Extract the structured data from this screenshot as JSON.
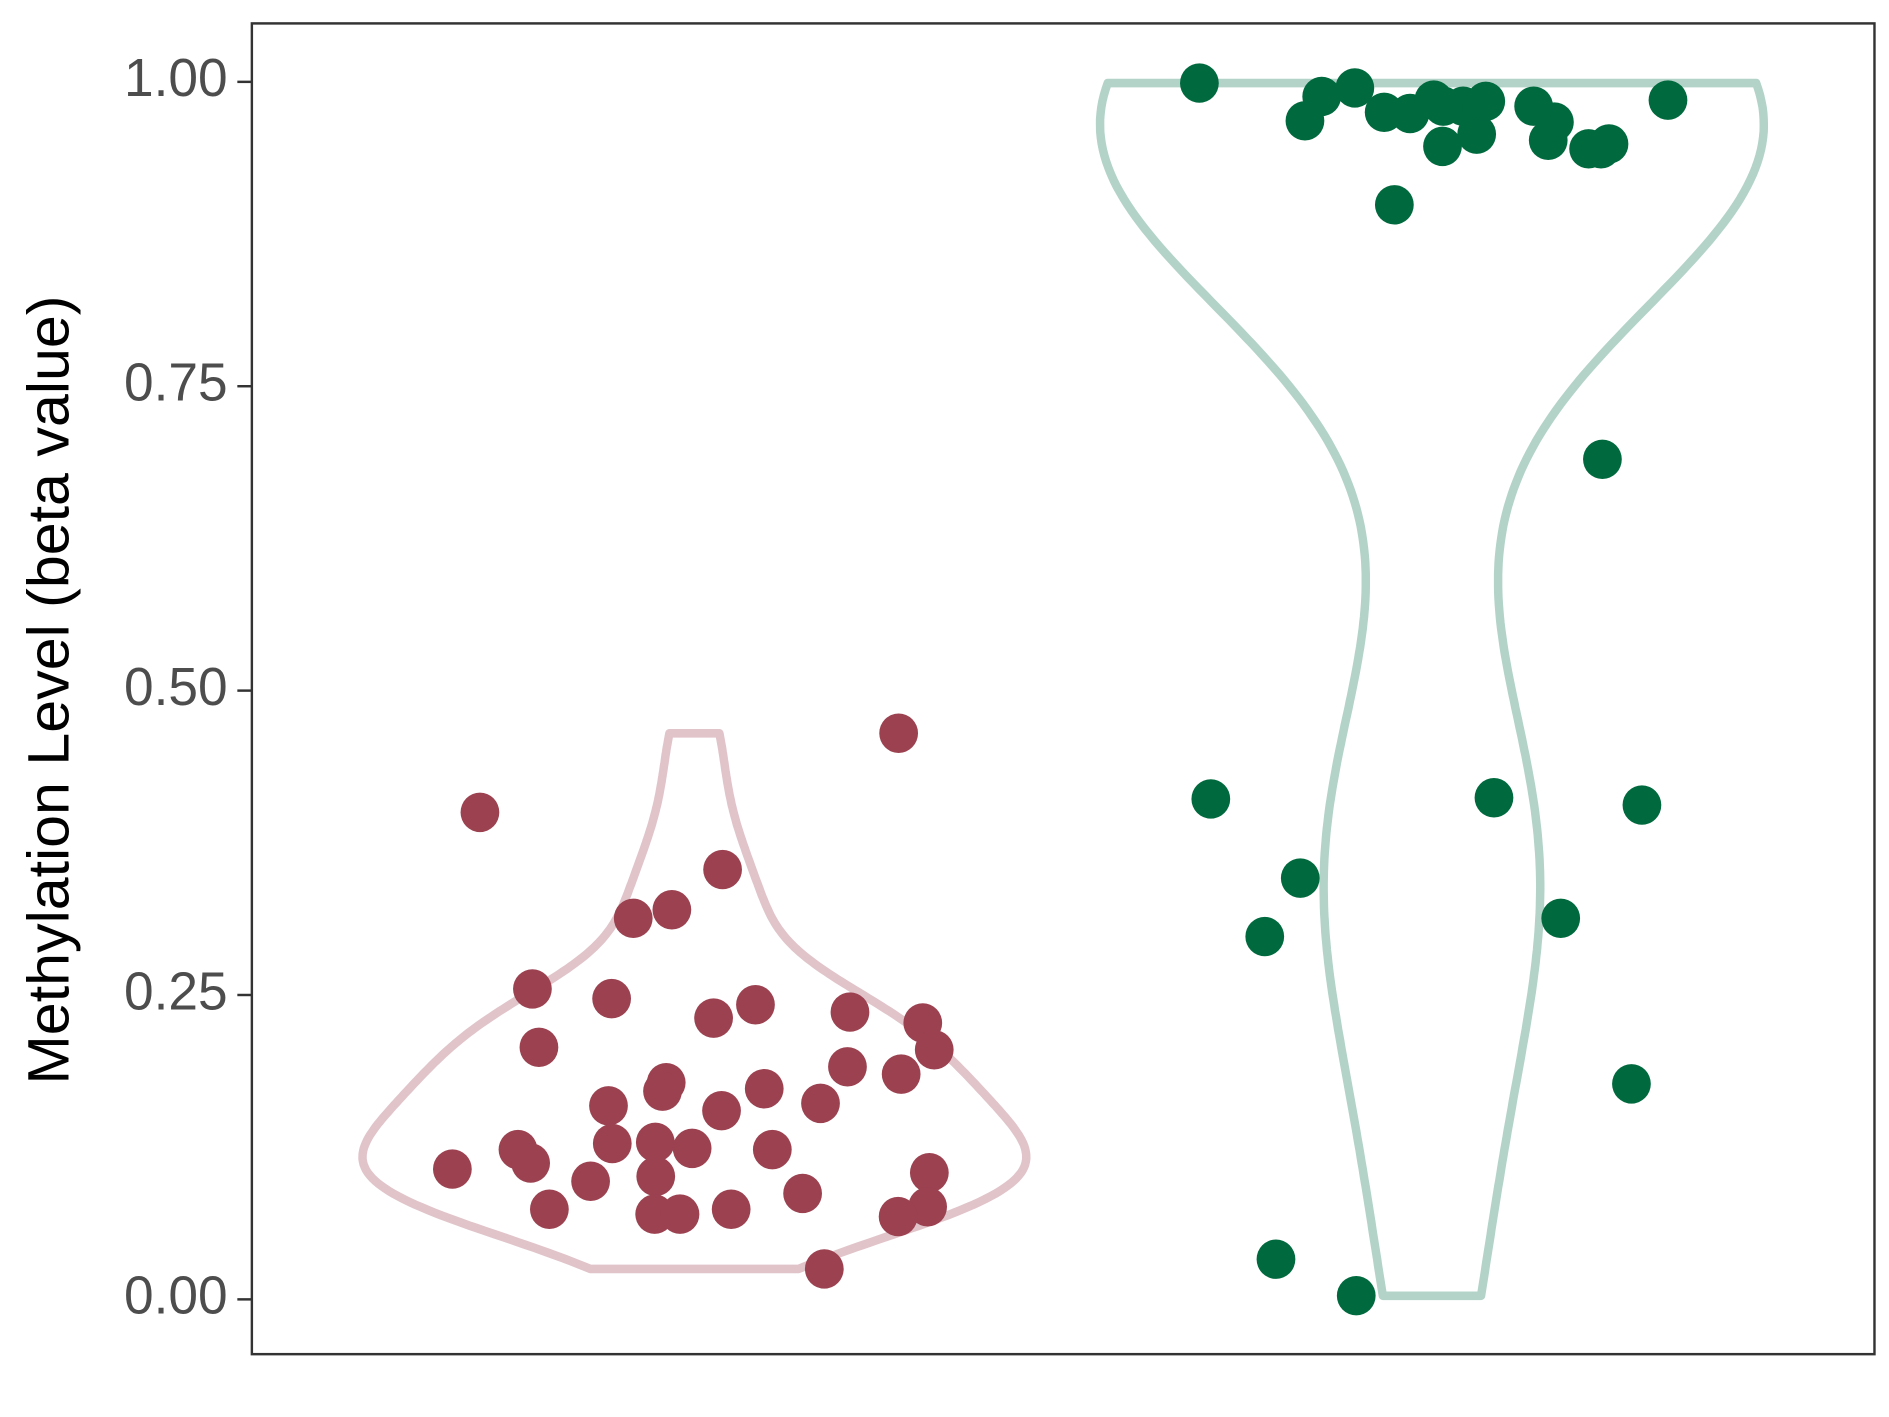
{
  "chart_data": {
    "type": "violin",
    "y_label": "Methylation Level (beta value)",
    "ylim": [
      -0.045,
      1.048
    ],
    "yticks": [
      {
        "value": 0,
        "label": "0.00"
      },
      {
        "value": 0.25,
        "label": "0.25"
      },
      {
        "value": 0.5,
        "label": "0.50"
      },
      {
        "value": 0.75,
        "label": "0.75"
      },
      {
        "value": 1,
        "label": "1.00"
      }
    ],
    "grid": false,
    "categories": [
      null,
      null
    ],
    "series": [
      {
        "color": "#9b4150",
        "outline_color": "#e0c4ca",
        "values": [
          0.465,
          0.4,
          0.353,
          0.313,
          0.32,
          0.242,
          0.255,
          0.247,
          0.231,
          0.227,
          0.236,
          0.207,
          0.205,
          0.191,
          0.178,
          0.185,
          0.171,
          0.173,
          0.159,
          0.161,
          0.155,
          0.123,
          0.129,
          0.123,
          0.128,
          0.124,
          0.107,
          0.112,
          0.101,
          0.104,
          0.087,
          0.097,
          0.07,
          0.074,
          0.074,
          0.076,
          0.068,
          0.07,
          0.025
        ]
      },
      {
        "color": "#00693e",
        "outline_color": "#b3d3c8",
        "values": [
          0.952,
          0.98,
          0.974,
          0.988,
          0.945,
          0.967,
          0.985,
          0.98,
          0.947,
          0.999,
          0.957,
          0.984,
          0.975,
          0.945,
          0.995,
          0.899,
          0.968,
          0.985,
          0.98,
          0.949,
          0.69,
          0.411,
          0.412,
          0.406,
          0.346,
          0.313,
          0.298,
          0.177,
          0.033,
          0.003
        ]
      }
    ]
  }
}
